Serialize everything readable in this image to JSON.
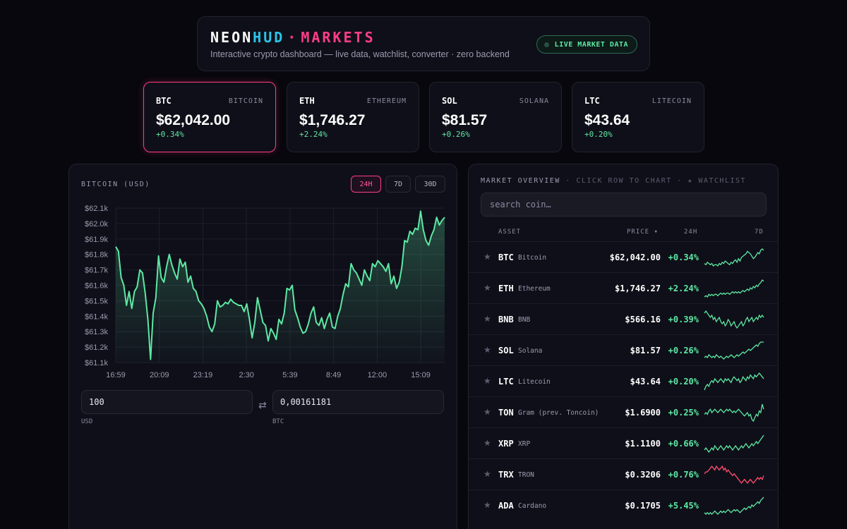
{
  "header": {
    "brand_a": "NEON",
    "brand_b": "HUD",
    "brand_sep": "·",
    "brand_c": "MARKETS",
    "tagline": "Interactive crypto dashboard — live data, watchlist, converter · zero backend",
    "live_label": "LIVE MARKET DATA"
  },
  "tickers": [
    {
      "symbol": "BTC",
      "name": "BITCOIN",
      "price": "$62,042.00",
      "change": "+0.34%"
    },
    {
      "symbol": "ETH",
      "name": "ETHEREUM",
      "price": "$1,746.27",
      "change": "+2.24%"
    },
    {
      "symbol": "SOL",
      "name": "SOLANA",
      "price": "$81.57",
      "change": "+0.26%"
    },
    {
      "symbol": "LTC",
      "name": "LITECOIN",
      "price": "$43.64",
      "change": "+0.20%"
    }
  ],
  "chart_panel": {
    "title": "BITCOIN (USD)",
    "ranges": [
      "24H",
      "7D",
      "30D"
    ],
    "active_range": "24H"
  },
  "converter": {
    "from_value": "100",
    "from_label": "USD",
    "to_value": "0,00161181",
    "to_label": "BTC",
    "swap_icon": "⇄"
  },
  "market": {
    "title": "MARKET OVERVIEW",
    "subtitle": " · CLICK ROW TO CHART · ★ WATCHLIST",
    "search_placeholder": "search coin…",
    "columns": {
      "asset": "ASSET",
      "price": "PRICE ▾",
      "change": "24H",
      "spark": "7D"
    },
    "rows": [
      {
        "symbol": "BTC",
        "name": "Bitcoin",
        "price": "$62,042.00",
        "change": "+0.34%",
        "trend": "up",
        "spark": [
          5,
          4,
          6,
          5,
          4,
          5,
          3,
          4,
          4,
          3,
          5,
          4,
          6,
          5,
          7,
          6,
          5,
          4,
          6,
          5,
          7,
          8,
          6,
          9,
          7,
          10,
          11,
          12,
          13,
          15,
          14,
          13,
          11,
          9,
          10,
          12,
          14,
          13,
          16,
          17,
          16
        ]
      },
      {
        "symbol": "ETH",
        "name": "Ethereum",
        "price": "$1,746.27",
        "change": "+2.24%",
        "trend": "up",
        "spark": [
          3,
          4,
          3,
          5,
          4,
          5,
          4,
          5,
          5,
          4,
          5,
          6,
          5,
          6,
          5,
          6,
          6,
          5,
          6,
          7,
          6,
          7,
          6,
          7,
          6,
          7,
          8,
          7,
          8,
          9,
          8,
          10,
          9,
          11,
          10,
          12,
          11,
          13,
          14,
          16,
          15
        ]
      },
      {
        "symbol": "BNB",
        "name": "BNB",
        "price": "$566.16",
        "change": "+0.39%",
        "trend": "up",
        "spark": [
          14,
          15,
          14,
          13,
          12,
          13,
          11,
          12,
          10,
          11,
          12,
          10,
          9,
          10,
          8,
          9,
          11,
          10,
          8,
          9,
          10,
          8,
          7,
          8,
          9,
          10,
          8,
          9,
          11,
          12,
          10,
          11,
          12,
          10,
          11,
          12,
          11,
          13,
          12,
          13,
          12
        ]
      },
      {
        "symbol": "SOL",
        "name": "Solana",
        "price": "$81.57",
        "change": "+0.26%",
        "trend": "up",
        "spark": [
          4,
          5,
          4,
          6,
          5,
          4,
          5,
          4,
          6,
          5,
          4,
          5,
          4,
          3,
          4,
          5,
          4,
          5,
          6,
          5,
          4,
          5,
          6,
          5,
          6,
          7,
          8,
          7,
          8,
          9,
          10,
          9,
          10,
          11,
          12,
          13,
          12,
          14,
          15,
          15,
          15
        ]
      },
      {
        "symbol": "LTC",
        "name": "Litecoin",
        "price": "$43.64",
        "change": "+0.20%",
        "trend": "up",
        "spark": [
          6,
          8,
          9,
          8,
          10,
          11,
          10,
          12,
          11,
          10,
          11,
          12,
          11,
          10,
          12,
          11,
          12,
          11,
          10,
          12,
          13,
          12,
          11,
          12,
          10,
          11,
          13,
          12,
          11,
          13,
          12,
          14,
          13,
          12,
          14,
          13,
          14,
          15,
          14,
          13,
          12
        ]
      },
      {
        "symbol": "TON",
        "name": "Gram (prev. Toncoin)",
        "price": "$1.6900",
        "change": "+0.25%",
        "trend": "up",
        "spark": [
          9,
          10,
          9,
          11,
          12,
          10,
          11,
          12,
          11,
          10,
          11,
          12,
          11,
          10,
          11,
          12,
          11,
          12,
          11,
          10,
          11,
          10,
          11,
          12,
          11,
          10,
          9,
          8,
          9,
          10,
          8,
          9,
          6,
          5,
          7,
          9,
          8,
          11,
          10,
          15,
          12
        ]
      },
      {
        "symbol": "XRP",
        "name": "XRP",
        "price": "$1.1100",
        "change": "+0.66%",
        "trend": "up",
        "spark": [
          6,
          7,
          6,
          5,
          6,
          7,
          6,
          8,
          7,
          6,
          7,
          8,
          7,
          6,
          7,
          8,
          7,
          8,
          7,
          6,
          7,
          8,
          7,
          6,
          7,
          8,
          7,
          8,
          9,
          8,
          7,
          8,
          9,
          8,
          9,
          10,
          9,
          10,
          11,
          12,
          13
        ]
      },
      {
        "symbol": "TRX",
        "name": "TRON",
        "price": "$0.3206",
        "change": "+0.76%",
        "trend": "down",
        "spark": [
          11,
          12,
          12,
          13,
          14,
          15,
          14,
          13,
          15,
          14,
          13,
          14,
          15,
          13,
          14,
          12,
          13,
          12,
          11,
          10,
          11,
          10,
          9,
          8,
          7,
          6,
          7,
          8,
          7,
          6,
          7,
          8,
          7,
          6,
          7,
          8,
          9,
          8,
          9,
          8,
          10
        ]
      },
      {
        "symbol": "ADA",
        "name": "Cardano",
        "price": "$0.1705",
        "change": "+5.45%",
        "trend": "up",
        "spark": [
          5,
          4,
          5,
          4,
          5,
          4,
          5,
          6,
          5,
          4,
          5,
          6,
          5,
          6,
          5,
          6,
          7,
          6,
          5,
          6,
          7,
          6,
          7,
          6,
          5,
          6,
          7,
          8,
          7,
          8,
          9,
          8,
          10,
          9,
          10,
          11,
          12,
          11,
          13,
          14,
          15
        ]
      }
    ]
  },
  "colors": {
    "accent": "#ff3d87",
    "cyan": "#29c6e8",
    "positive": "#5de8a3",
    "negative": "#ff4d6d"
  },
  "chart_data": {
    "type": "area",
    "x_ticks": [
      "16:59",
      "20:09",
      "23:19",
      "2:30",
      "5:39",
      "8:49",
      "12:00",
      "15:09"
    ],
    "y_ticks": [
      "$62.1k",
      "$62.0k",
      "$61.9k",
      "$61.8k",
      "$61.7k",
      "$61.6k",
      "$61.5k",
      "$61.4k",
      "$61.3k",
      "$61.2k",
      "$61.1k"
    ],
    "ylim": [
      61100,
      62100
    ],
    "grid": true,
    "series": [
      {
        "values": [
          61850,
          61820,
          61650,
          61600,
          61470,
          61560,
          61450,
          61560,
          61590,
          61700,
          61680,
          61550,
          61380,
          61120,
          61420,
          61520,
          61790,
          61650,
          61620,
          61720,
          61800,
          61730,
          61680,
          61640,
          61770,
          61720,
          61750,
          61620,
          61660,
          61580,
          61560,
          61500,
          61480,
          61450,
          61400,
          61330,
          61300,
          61350,
          61500,
          61460,
          61470,
          61490,
          61480,
          61510,
          61490,
          61480,
          61470,
          61470,
          61430,
          61480,
          61380,
          61260,
          61360,
          61520,
          61440,
          61360,
          61340,
          61240,
          61320,
          61290,
          61250,
          61380,
          61350,
          61420,
          61580,
          61570,
          61600,
          61440,
          61390,
          61330,
          61290,
          61300,
          61350,
          61420,
          61460,
          61360,
          61340,
          61390,
          61320,
          61380,
          61420,
          61330,
          61320,
          61400,
          61450,
          61540,
          61610,
          61590,
          61740,
          61700,
          61680,
          61640,
          61600,
          61700,
          61660,
          61630,
          61740,
          61720,
          61760,
          61740,
          61720,
          61690,
          61740,
          61610,
          61660,
          61580,
          61620,
          61720,
          61890,
          61880,
          61950,
          61930,
          61970,
          61960,
          62080,
          61960,
          61890,
          61860,
          61920,
          61960,
          62040,
          61990,
          62020,
          62040
        ]
      }
    ]
  }
}
